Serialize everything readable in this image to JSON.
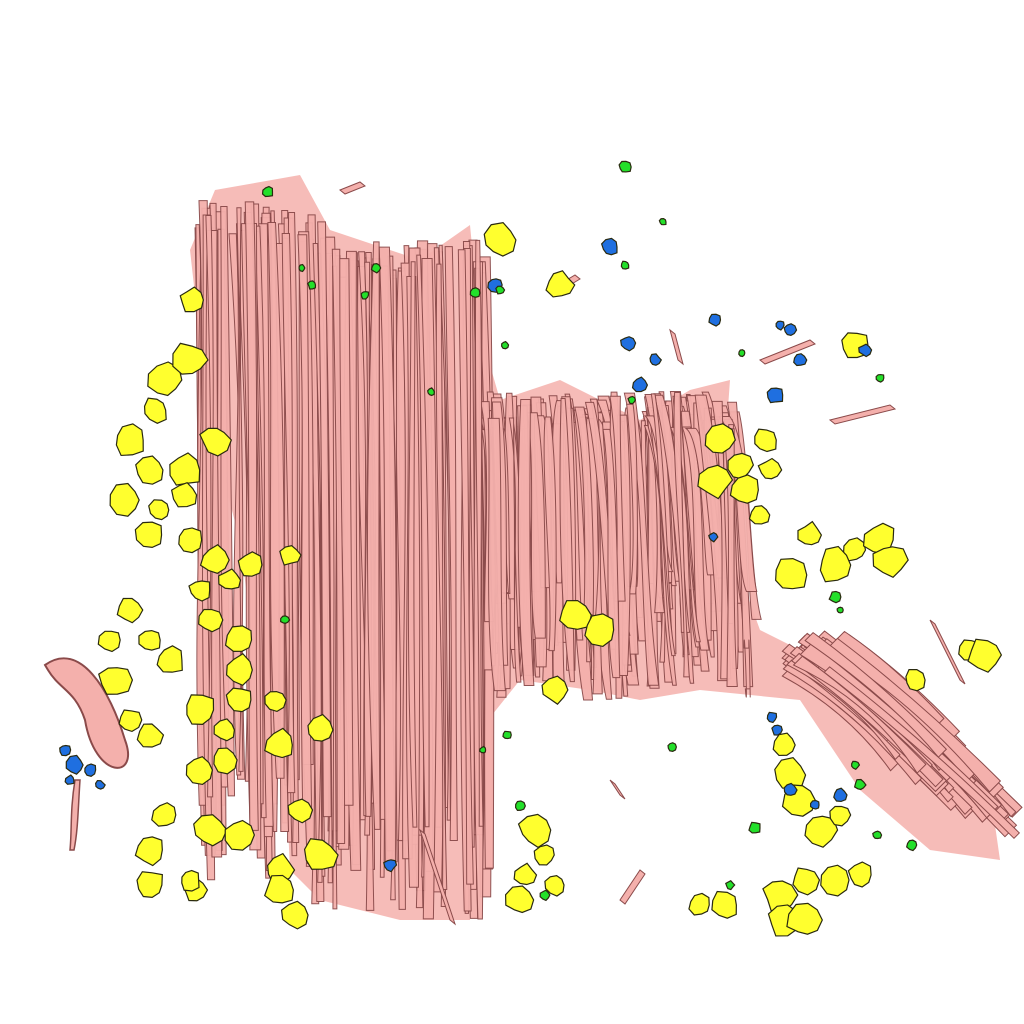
{
  "scene": {
    "background": "#ffffff",
    "colors": {
      "fiber_fill": "#f4b0ac",
      "fiber_outline": "#8a4a4a",
      "yellow_blob": "#ffff2e",
      "blue_blob": "#1f6fe0",
      "green_blob": "#23e02a",
      "blob_outline": "#2a2a10"
    }
  }
}
